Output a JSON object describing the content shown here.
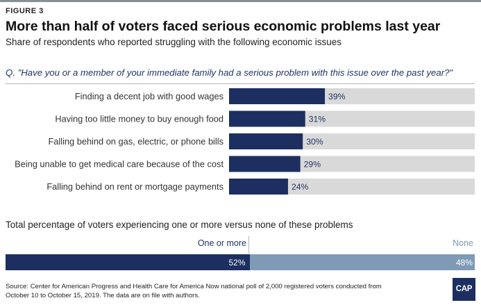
{
  "figure_label": "FIGURE 3",
  "title": "More than half of voters faced serious economic problems last year",
  "subtitle": "Share of respondents who reported struggling with the following economic issues",
  "question": "Q. \"Have you or a member of your immediate family had a serious problem with this issue over the past year?\"",
  "chart_data": [
    {
      "type": "bar",
      "orientation": "horizontal",
      "categories": [
        "Finding a decent job with good wages",
        "Having too little money to buy enough food",
        "Falling behind on gas, electric, or phone bills",
        "Being unable to get medical care because of the cost",
        "Falling behind on rent or mortgage payments"
      ],
      "values": [
        39,
        31,
        30,
        29,
        24
      ],
      "value_labels": [
        "39%",
        "31%",
        "30%",
        "29%",
        "24%"
      ],
      "xlim": [
        0,
        100
      ],
      "bar_color": "#1c2f60",
      "track_color": "#d9d9d9"
    },
    {
      "type": "bar",
      "orientation": "stacked-horizontal",
      "title": "Total percentage of voters experiencing one or more versus none of these problems",
      "series": [
        {
          "name": "One or more",
          "values": [
            52
          ],
          "label": "52%",
          "color": "#1c2f60"
        },
        {
          "name": "None",
          "values": [
            48
          ],
          "label": "48%",
          "color": "#7f9ab5"
        }
      ],
      "xlim": [
        0,
        100
      ]
    }
  ],
  "source": "Source: Center for American Progress and Health Care for America Now national poll of 2,000 registered voters conducted from October 10 to October 15, 2019. The data are on file with authors.",
  "logo_text": "CAP"
}
